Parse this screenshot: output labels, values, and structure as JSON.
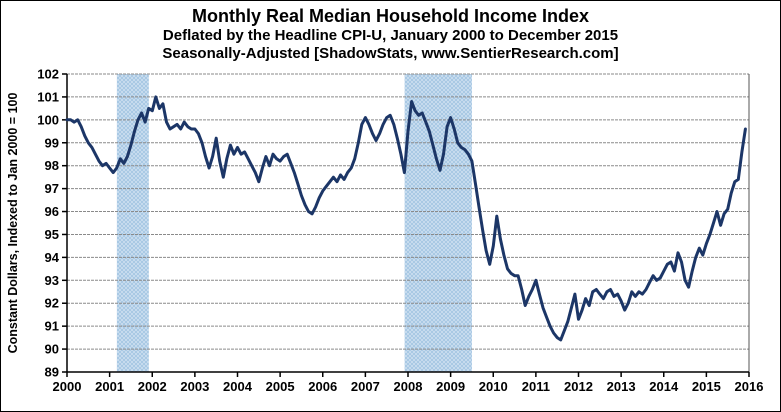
{
  "chart_data": {
    "type": "line",
    "title": "Monthly Real Median Household Income Index",
    "subtitle1": "Deflated by the Headline CPI-U, January 2000 to December 2015",
    "subtitle2": "Seasonally-Adjusted [ShadowStats, www.SentierResearch.com]",
    "ylabel": "Constant Dollars, Indexed to Jan 2000 = 100",
    "xlabel": "",
    "ylim": [
      89,
      102
    ],
    "xlim": [
      2000,
      2016
    ],
    "y_ticks": [
      89,
      90,
      91,
      92,
      93,
      94,
      95,
      96,
      97,
      98,
      99,
      100,
      101,
      102
    ],
    "x_ticks": [
      2000,
      2001,
      2002,
      2003,
      2004,
      2005,
      2006,
      2007,
      2008,
      2009,
      2010,
      2011,
      2012,
      2013,
      2014,
      2015,
      2016
    ],
    "grid": true,
    "legend": "none",
    "line_color": "#1c3667",
    "band_color": "#c6dbee",
    "band_color2": "#a9c9e4",
    "grid_color": "#8a8a8a",
    "axis_color": "#000000",
    "recession_bands": [
      {
        "name": "recession-2001",
        "start": 2001.17,
        "end": 2001.92
      },
      {
        "name": "recession-2008",
        "start": 2007.92,
        "end": 2009.5
      }
    ],
    "series": [
      {
        "name": "Real Median Household Income Index (monthly, Jan 2000 - Dec 2015)",
        "x_start_year": 2000,
        "x_step_months": 1,
        "values": [
          100.0,
          100.0,
          99.9,
          100.0,
          99.7,
          99.3,
          99.0,
          98.8,
          98.5,
          98.2,
          98.0,
          98.1,
          97.9,
          97.7,
          97.9,
          98.3,
          98.1,
          98.4,
          98.9,
          99.5,
          100.0,
          100.3,
          99.9,
          100.5,
          100.4,
          101.0,
          100.5,
          100.7,
          99.9,
          99.6,
          99.7,
          99.8,
          99.6,
          99.9,
          99.7,
          99.6,
          99.6,
          99.4,
          99.0,
          98.4,
          97.9,
          98.4,
          99.2,
          98.2,
          97.5,
          98.3,
          98.9,
          98.5,
          98.8,
          98.5,
          98.6,
          98.3,
          98.0,
          97.7,
          97.3,
          97.9,
          98.4,
          98.0,
          98.5,
          98.3,
          98.2,
          98.4,
          98.5,
          98.1,
          97.7,
          97.2,
          96.7,
          96.3,
          96.0,
          95.9,
          96.2,
          96.6,
          96.9,
          97.1,
          97.3,
          97.5,
          97.3,
          97.6,
          97.4,
          97.7,
          97.9,
          98.3,
          99.0,
          99.8,
          100.1,
          99.8,
          99.4,
          99.1,
          99.4,
          99.8,
          100.1,
          100.2,
          99.8,
          99.2,
          98.5,
          97.7,
          99.5,
          100.8,
          100.4,
          100.2,
          100.3,
          99.9,
          99.5,
          98.9,
          98.3,
          97.8,
          98.5,
          99.7,
          100.1,
          99.6,
          99.0,
          98.8,
          98.7,
          98.5,
          98.2,
          97.2,
          96.2,
          95.2,
          94.3,
          93.7,
          94.5,
          95.8,
          94.8,
          94.1,
          93.5,
          93.3,
          93.2,
          93.2,
          92.6,
          91.9,
          92.3,
          92.6,
          93.0,
          92.4,
          91.8,
          91.4,
          91.0,
          90.7,
          90.5,
          90.4,
          90.8,
          91.2,
          91.8,
          92.4,
          91.3,
          91.7,
          92.2,
          91.9,
          92.5,
          92.6,
          92.4,
          92.2,
          92.5,
          92.6,
          92.3,
          92.4,
          92.1,
          91.7,
          92.0,
          92.5,
          92.3,
          92.5,
          92.4,
          92.6,
          92.9,
          93.2,
          93.0,
          93.1,
          93.4,
          93.7,
          93.8,
          93.4,
          94.2,
          93.8,
          93.0,
          92.7,
          93.4,
          94.0,
          94.4,
          94.1,
          94.6,
          95.0,
          95.5,
          96.0,
          95.4,
          95.9,
          96.1,
          96.8,
          97.3,
          97.4,
          98.6,
          99.6
        ]
      }
    ]
  }
}
